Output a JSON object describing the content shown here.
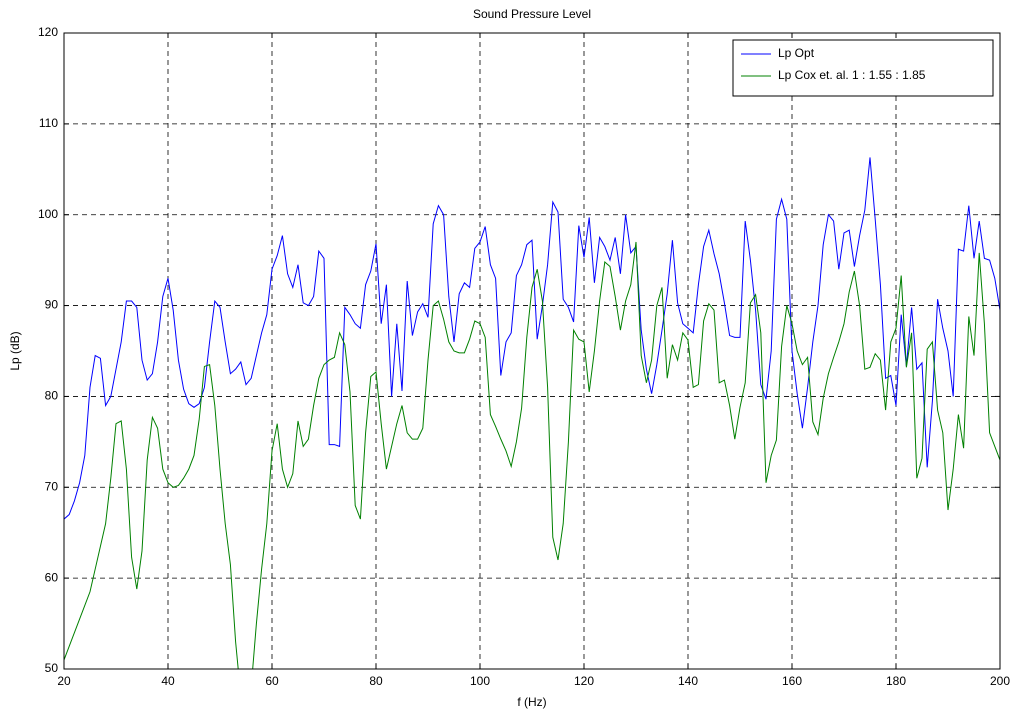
{
  "chart_data": {
    "type": "line",
    "title": "Sound Pressure Level",
    "x_label": "f (Hz)",
    "y_label": "Lp (dB)",
    "xlim": [
      20,
      200
    ],
    "ylim": [
      50,
      120
    ],
    "xticks": [
      20,
      40,
      60,
      80,
      100,
      120,
      140,
      160,
      180,
      200
    ],
    "yticks": [
      50,
      60,
      70,
      80,
      90,
      100,
      110,
      120
    ],
    "grid": true,
    "legend": "upper right",
    "x": [
      20,
      21,
      22,
      23,
      24,
      25,
      26,
      27,
      28,
      29,
      30,
      31,
      32,
      33,
      34,
      35,
      36,
      37,
      38,
      39,
      40,
      41,
      42,
      43,
      44,
      45,
      46,
      47,
      48,
      49,
      50,
      51,
      52,
      53,
      54,
      55,
      56,
      57,
      58,
      59,
      60,
      61,
      62,
      63,
      64,
      65,
      66,
      67,
      68,
      69,
      70,
      71,
      72,
      73,
      74,
      75,
      76,
      77,
      78,
      79,
      80,
      81,
      82,
      83,
      84,
      85,
      86,
      87,
      88,
      89,
      90,
      91,
      92,
      93,
      94,
      95,
      96,
      97,
      98,
      99,
      100,
      101,
      102,
      103,
      104,
      105,
      106,
      107,
      108,
      109,
      110,
      111,
      112,
      113,
      114,
      115,
      116,
      117,
      118,
      119,
      120,
      121,
      122,
      123,
      124,
      125,
      126,
      127,
      128,
      129,
      130,
      131,
      132,
      133,
      134,
      135,
      136,
      137,
      138,
      139,
      140,
      141,
      142,
      143,
      144,
      145,
      146,
      147,
      148,
      149,
      150,
      151,
      152,
      153,
      154,
      155,
      156,
      157,
      158,
      159,
      160,
      161,
      162,
      163,
      164,
      165,
      166,
      167,
      168,
      169,
      170,
      171,
      172,
      173,
      174,
      175,
      176,
      177,
      178,
      179,
      180,
      181,
      182,
      183,
      184,
      185,
      186,
      187,
      188,
      189,
      190,
      191,
      192,
      193,
      194,
      195,
      196,
      197,
      198,
      199,
      200
    ],
    "series": [
      {
        "name": "Lp Opt",
        "color": "#0000ff",
        "values": [
          66.5,
          67,
          68.5,
          70.5,
          73.5,
          81,
          84.5,
          84.2,
          79,
          80,
          83,
          86,
          90.5,
          90.5,
          89.8,
          84,
          81.8,
          82.5,
          86,
          91,
          93,
          89.5,
          84,
          80.8,
          79.2,
          78.8,
          79.2,
          81,
          86,
          90.5,
          89.8,
          86,
          82.5,
          83,
          83.8,
          81.3,
          82,
          84.5,
          87,
          89,
          94,
          95.5,
          97.7,
          93.5,
          92,
          94.5,
          90.3,
          90,
          91,
          96,
          95.2,
          74.7,
          74.7,
          74.5,
          89.8,
          89,
          88,
          87.5,
          92.3,
          93.8,
          96.8,
          88,
          92.3,
          80,
          88,
          80.6,
          92.7,
          86.7,
          89.3,
          90.2,
          88.7,
          99,
          101,
          100,
          91,
          86,
          91.3,
          92.5,
          92,
          96.3,
          97,
          98.7,
          94.5,
          93,
          82.3,
          86,
          87,
          93.3,
          94.5,
          96.7,
          97.2,
          86.3,
          90,
          94.5,
          101.4,
          100.3,
          90.7,
          89.8,
          88.2,
          98.8,
          95.3,
          99.7,
          92.5,
          97.5,
          96.5,
          95,
          97.5,
          93.5,
          100,
          95.8,
          96.5,
          87.3,
          83,
          80.3,
          83.5,
          87.3,
          91.3,
          97.2,
          90.3,
          88,
          87.5,
          87,
          92.3,
          96.5,
          98.3,
          95.7,
          93.5,
          90.3,
          86.7,
          86.5,
          86.5,
          99.3,
          95,
          89.5,
          81.3,
          79.7,
          85,
          99.5,
          101.7,
          99.5,
          85,
          80.3,
          76.5,
          81,
          86,
          90,
          96.7,
          100,
          99.3,
          94,
          98,
          98.3,
          94.3,
          97.7,
          100.5,
          106.3,
          99.5,
          92.3,
          82,
          82.3,
          79,
          89,
          83.3,
          89.8,
          83,
          83.7,
          72.2,
          79.5,
          90.7,
          87.5,
          85,
          80,
          96.2,
          96,
          101,
          95.2,
          99.3,
          95.2,
          95,
          93,
          89.5
        ]
      },
      {
        "name": "Lp Cox et. al. 1 : 1.55 : 1.85",
        "color": "#008000",
        "values": [
          51,
          52.5,
          54,
          55.5,
          57,
          58.5,
          61,
          63.5,
          66,
          71,
          77,
          77.3,
          72,
          62.3,
          58.8,
          63,
          73,
          77.7,
          76.5,
          72,
          70.5,
          70,
          70.2,
          71,
          72,
          73.5,
          77.5,
          83.3,
          83.5,
          79,
          72,
          66,
          61.5,
          53,
          47,
          46,
          48,
          55,
          61,
          66,
          74,
          77,
          72,
          70,
          71.5,
          77.3,
          74.5,
          75.3,
          79,
          82,
          83.5,
          84,
          84.3,
          87,
          85.7,
          80.5,
          68,
          66.5,
          76,
          82.2,
          82.7,
          77,
          72,
          74.5,
          77,
          79,
          76,
          75.3,
          75.3,
          76.5,
          84,
          90,
          90.5,
          88.5,
          86,
          85,
          84.8,
          84.8,
          86.3,
          88.3,
          88,
          86.5,
          78,
          76.7,
          75.3,
          74,
          72.3,
          75,
          78.7,
          86.5,
          92,
          94,
          90.5,
          81,
          64.5,
          62,
          66,
          75,
          87.3,
          86.3,
          86,
          80.5,
          85,
          90.5,
          94.8,
          94.3,
          91,
          87.3,
          90.5,
          92.3,
          97,
          84.5,
          81.5,
          84,
          90,
          92,
          82,
          85.7,
          84,
          87,
          86.2,
          81,
          81.3,
          88.3,
          90.2,
          89.5,
          81.5,
          81.8,
          79,
          75.3,
          78.8,
          81.5,
          90.3,
          91.2,
          87,
          70.5,
          73.5,
          75.2,
          85.5,
          90,
          88,
          85,
          83.5,
          84.3,
          77.2,
          75.8,
          79.8,
          82.5,
          84.3,
          86,
          88,
          91.5,
          93.8,
          90,
          83,
          83.2,
          84.7,
          84,
          78.5,
          86,
          87.5,
          93.3,
          83.2,
          87,
          71,
          73.2,
          85.2,
          86,
          78.5,
          76,
          67.5,
          72,
          78,
          74.3,
          88.8,
          84.5,
          95.8,
          88,
          76,
          74.5,
          73
        ]
      }
    ]
  }
}
